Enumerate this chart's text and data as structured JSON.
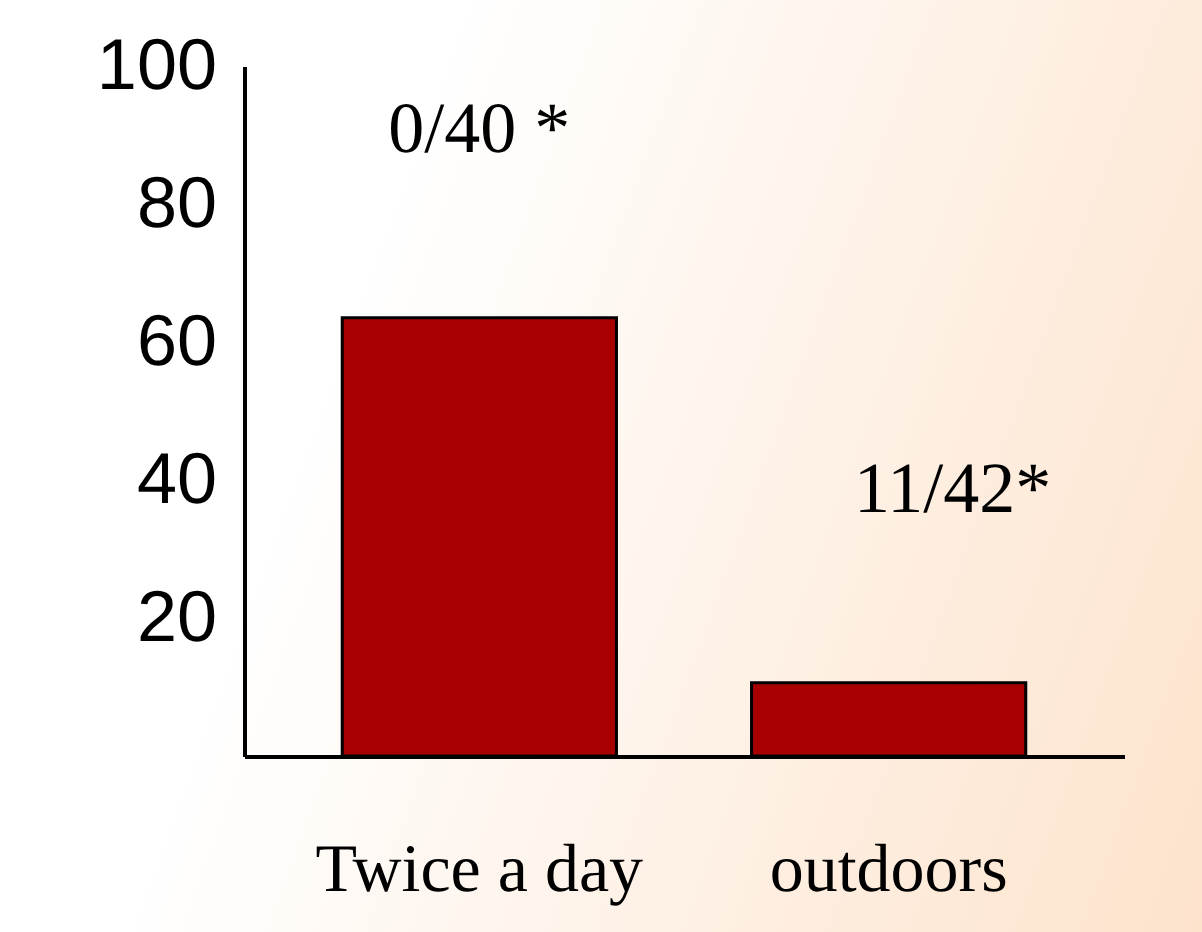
{
  "chart_data": {
    "type": "bar",
    "categories": [
      "Twice a day",
      "outdoors"
    ],
    "values": [
      63.5,
      10.6
    ],
    "color": "#a80000",
    "ylim": [
      0,
      100
    ],
    "yticks": [
      20,
      40,
      60,
      80,
      100
    ],
    "grid": false,
    "annotations": [
      "0/40 *",
      "11/42*"
    ]
  }
}
